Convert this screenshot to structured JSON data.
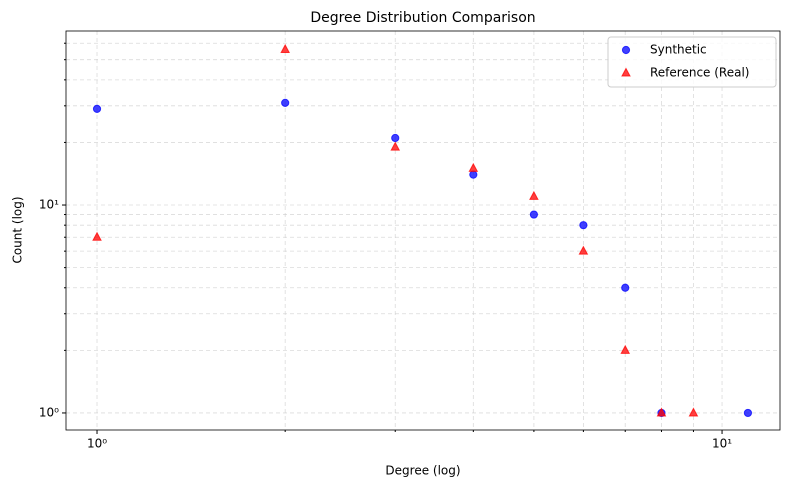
{
  "chart_data": {
    "type": "scatter",
    "title": "Degree Distribution Comparison",
    "x_label": "Degree (log)",
    "y_label": "Count (log)",
    "xscale": "log",
    "yscale": "log",
    "grid": true,
    "legend": "upper right",
    "xlim": [
      0.892,
      12.38
    ],
    "ylim": [
      0.828,
      68.7
    ],
    "xticks": [
      {
        "value": 1,
        "label": "10⁰"
      },
      {
        "value": 10,
        "label": "10¹"
      }
    ],
    "yticks": [
      {
        "value": 1,
        "label": "10⁰"
      },
      {
        "value": 10,
        "label": "10¹"
      }
    ],
    "xminorticks": [
      2,
      3,
      4,
      5,
      6,
      7,
      8,
      9
    ],
    "yminorticks": [
      2,
      3,
      4,
      5,
      6,
      7,
      8,
      9,
      20,
      30,
      40,
      50,
      60
    ],
    "series": [
      {
        "name": "Synthetic",
        "color": "#0000ff",
        "marker": "circle",
        "x": [
          1,
          2,
          3,
          4,
          5,
          6,
          7,
          8,
          11
        ],
        "values": [
          29,
          31,
          21,
          14,
          9,
          8,
          4,
          1,
          1
        ]
      },
      {
        "name": "Reference (Real)",
        "color": "#ff0000",
        "marker": "triangle",
        "x": [
          1,
          2,
          3,
          4,
          5,
          6,
          7,
          8,
          9
        ],
        "values": [
          7,
          56,
          19,
          15,
          11,
          6,
          2,
          1,
          1
        ]
      }
    ]
  }
}
